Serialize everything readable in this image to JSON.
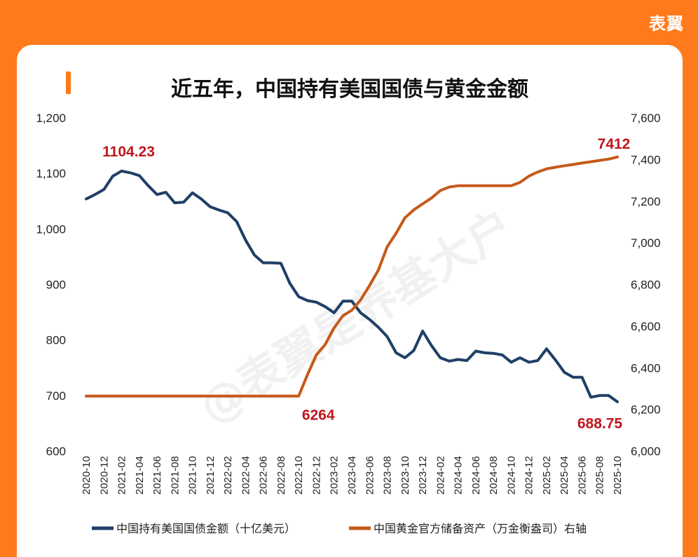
{
  "brand": "表翼",
  "chart_data": {
    "type": "line",
    "title": "近五年，中国持有美国国债与黄金金额",
    "watermark": "@表翼是养基大户",
    "x": [
      "2020-10",
      "2020-11",
      "2020-12",
      "2021-01",
      "2021-02",
      "2021-03",
      "2021-04",
      "2021-05",
      "2021-06",
      "2021-07",
      "2021-08",
      "2021-09",
      "2021-10",
      "2021-11",
      "2021-12",
      "2022-01",
      "2022-02",
      "2022-03",
      "2022-04",
      "2022-05",
      "2022-06",
      "2022-07",
      "2022-08",
      "2022-09",
      "2022-10",
      "2022-11",
      "2022-12",
      "2023-01",
      "2023-02",
      "2023-03",
      "2023-04",
      "2023-05",
      "2023-06",
      "2023-07",
      "2023-08",
      "2023-09",
      "2023-10",
      "2023-11",
      "2023-12",
      "2024-01",
      "2024-02",
      "2024-03",
      "2024-04",
      "2024-05",
      "2024-06",
      "2024-07",
      "2024-08",
      "2024-09",
      "2024-10",
      "2024-11",
      "2024-12",
      "2025-01",
      "2025-02",
      "2025-03",
      "2025-04",
      "2025-05",
      "2025-06",
      "2025-07",
      "2025-08",
      "2025-09",
      "2025-10"
    ],
    "x_tick_labels": [
      "2020-10",
      "2020-12",
      "2021-02",
      "2021-04",
      "2021-06",
      "2021-08",
      "2021-10",
      "2021-12",
      "2022-02",
      "2022-04",
      "2022-06",
      "2022-08",
      "2022-10",
      "2022-12",
      "2023-02",
      "2023-04",
      "2023-06",
      "2023-08",
      "2023-10",
      "2023-12",
      "2024-02",
      "2024-04",
      "2024-06",
      "2024-08",
      "2024-10",
      "2024-12",
      "2025-02",
      "2025-04",
      "2025-06",
      "2025-08",
      "2025-10"
    ],
    "y_left": {
      "ylim": [
        600,
        1200
      ],
      "ticks": [
        "600",
        "700",
        "800",
        "900",
        "1,000",
        "1,100",
        "1,200"
      ]
    },
    "y_right": {
      "ylim": [
        6000,
        7600
      ],
      "ticks": [
        "6,000",
        "6,200",
        "6,400",
        "6,600",
        "6,800",
        "7,000",
        "7,200",
        "7,400",
        "7,600"
      ]
    },
    "series": [
      {
        "name": "中国持有美国国债金额（十亿美元）",
        "axis": "left",
        "color": "#1F3F66",
        "values": [
          1054,
          1062,
          1071,
          1095,
          1104.23,
          1101,
          1096,
          1078,
          1062,
          1066,
          1047,
          1048,
          1065,
          1054,
          1040,
          1034,
          1029,
          1013,
          980,
          953,
          939,
          939,
          938,
          902,
          878,
          871,
          868,
          860,
          849,
          870,
          870,
          849,
          837,
          823,
          806,
          777,
          768,
          781,
          816,
          790,
          768,
          762,
          765,
          763,
          780,
          777,
          776,
          773,
          760,
          768,
          760,
          763,
          784,
          764,
          742,
          733,
          733,
          697,
          700,
          700,
          688.75
        ],
        "last_label": "688.75"
      },
      {
        "name": "中国黄金官方储备资产（万金衡盎司）右轴",
        "axis": "right",
        "color": "#C55A1A",
        "values": [
          6264,
          6264,
          6264,
          6264,
          6264,
          6264,
          6264,
          6264,
          6264,
          6264,
          6264,
          6264,
          6264,
          6264,
          6264,
          6264,
          6264,
          6264,
          6264,
          6264,
          6264,
          6264,
          6264,
          6264,
          6264,
          6367,
          6462,
          6512,
          6592,
          6650,
          6676,
          6726,
          6795,
          6869,
          6981,
          7046,
          7120,
          7158,
          7187,
          7215,
          7251,
          7268,
          7274,
          7274,
          7274,
          7274,
          7274,
          7274,
          7274,
          7290,
          7320,
          7340,
          7355,
          7363,
          7370,
          7376,
          7383,
          7389,
          7396,
          7402,
          7412
        ],
        "last_label": "7412"
      }
    ],
    "annotations": {
      "peak_label": "1104.23",
      "gold_start_label": "6264",
      "gold_end_label": "7412",
      "bond_end_label": "688.75"
    }
  }
}
